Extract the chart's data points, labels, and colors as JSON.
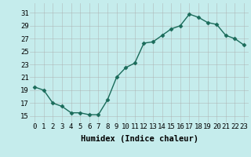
{
  "xlabel": "Humidex (Indice chaleur)",
  "x": [
    0,
    1,
    2,
    3,
    4,
    5,
    6,
    7,
    8,
    9,
    10,
    11,
    12,
    13,
    14,
    15,
    16,
    17,
    18,
    19,
    20,
    21,
    22,
    23
  ],
  "y": [
    19.5,
    19.0,
    17.0,
    16.5,
    15.5,
    15.5,
    15.2,
    15.2,
    17.5,
    21.0,
    22.5,
    23.2,
    26.3,
    26.5,
    27.5,
    28.5,
    29.0,
    30.8,
    30.3,
    29.5,
    29.2,
    27.5,
    27.0,
    26.0
  ],
  "ylim": [
    14.0,
    32.5
  ],
  "yticks": [
    15,
    17,
    19,
    21,
    23,
    25,
    27,
    29,
    31
  ],
  "xticks": [
    0,
    1,
    2,
    3,
    4,
    5,
    6,
    7,
    8,
    9,
    10,
    11,
    12,
    13,
    14,
    15,
    16,
    17,
    18,
    19,
    20,
    21,
    22,
    23
  ],
  "line_color": "#1a6b5a",
  "marker": "D",
  "marker_size": 2.5,
  "bg_color": "#c5ecec",
  "grid_color": "#aaaaaa",
  "tick_label_fontsize": 6.5,
  "xlabel_fontsize": 7.5,
  "xlabel_fontweight": "bold"
}
